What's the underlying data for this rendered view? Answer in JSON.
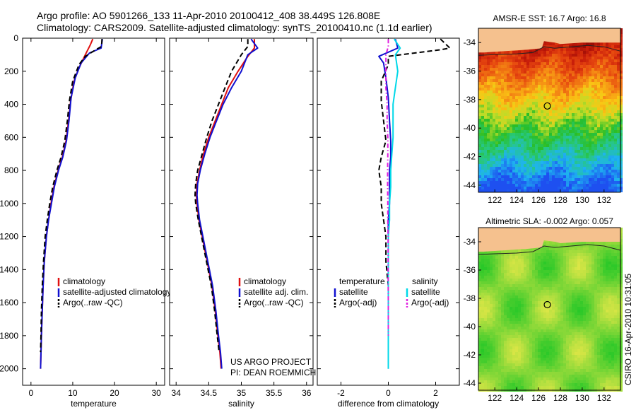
{
  "header": {
    "line1": "Argo profile: AO 5901266_133 11-Apr-2010 20100412_408 38.449S 126.808E",
    "line2": "Climatology: CARS2009. Satellite-adjusted climatology: synTS_20100410.nc (1.1d earlier)"
  },
  "side_label": "CSIRO 16-Apr-2010 10:31:05",
  "credit": {
    "line1": "US ARGO PROJECT",
    "line2": "PI: DEAN ROEMMICH"
  },
  "colors": {
    "climatology": "#e01010",
    "satellite": "#1010d0",
    "argo": "#000000",
    "sat_diff": "#00d8e8",
    "argo_adj": "#e020e0",
    "land": "#f5c18e"
  },
  "chart_data": [
    {
      "type": "line",
      "xlabel": "temperature",
      "ylabel": "",
      "xlim": [
        -2,
        32
      ],
      "ylim": [
        2100,
        0
      ],
      "xticks": [
        0,
        10,
        20,
        30
      ],
      "yticks": [
        0,
        200,
        400,
        600,
        800,
        1000,
        1200,
        1400,
        1600,
        1800,
        2000
      ],
      "legend": [
        "climatology",
        "satellite-adjusted climatology",
        "Argo(..raw -QC)"
      ],
      "series": [
        {
          "key": "climatology",
          "style": "solid",
          "points": [
            [
              14.8,
              5
            ],
            [
              14.2,
              40
            ],
            [
              13.0,
              100
            ],
            [
              11.5,
              180
            ],
            [
              10.3,
              260
            ],
            [
              9.5,
              380
            ],
            [
              9.0,
              500
            ],
            [
              8.4,
              620
            ],
            [
              7.5,
              720
            ],
            [
              6.5,
              800
            ],
            [
              5.5,
              900
            ],
            [
              4.8,
              1000
            ],
            [
              4.2,
              1100
            ],
            [
              3.7,
              1200
            ],
            [
              3.2,
              1350
            ],
            [
              2.9,
              1500
            ],
            [
              2.7,
              1650
            ],
            [
              2.5,
              1800
            ],
            [
              2.4,
              1900
            ],
            [
              2.3,
              2000
            ]
          ]
        },
        {
          "key": "satellite",
          "style": "solid",
          "points": [
            [
              17.1,
              5
            ],
            [
              16.8,
              60
            ],
            [
              14.0,
              90
            ],
            [
              12.0,
              150
            ],
            [
              10.6,
              240
            ],
            [
              9.6,
              360
            ],
            [
              9.1,
              500
            ],
            [
              8.5,
              620
            ],
            [
              7.6,
              720
            ],
            [
              6.6,
              800
            ],
            [
              5.6,
              900
            ],
            [
              4.9,
              1000
            ],
            [
              4.2,
              1100
            ],
            [
              3.7,
              1200
            ],
            [
              3.2,
              1350
            ],
            [
              2.9,
              1500
            ],
            [
              2.7,
              1650
            ],
            [
              2.5,
              1800
            ],
            [
              2.4,
              1900
            ],
            [
              2.3,
              2000
            ]
          ]
        },
        {
          "key": "argo",
          "style": "dashed",
          "points": [
            [
              17.0,
              5
            ],
            [
              16.9,
              50
            ],
            [
              15.5,
              70
            ],
            [
              13.0,
              110
            ],
            [
              11.5,
              160
            ],
            [
              10.0,
              260
            ],
            [
              9.2,
              380
            ],
            [
              8.7,
              500
            ],
            [
              8.1,
              620
            ],
            [
              7.2,
              720
            ],
            [
              6.2,
              800
            ],
            [
              5.2,
              900
            ],
            [
              4.5,
              1000
            ],
            [
              3.9,
              1100
            ],
            [
              3.4,
              1200
            ],
            [
              3.0,
              1350
            ],
            [
              2.7,
              1500
            ],
            [
              2.5,
              1650
            ],
            [
              2.4,
              1800
            ],
            [
              2.3,
              1900
            ]
          ]
        }
      ]
    },
    {
      "type": "line",
      "xlabel": "salinity",
      "ylabel": "",
      "xlim": [
        33.9,
        36.1
      ],
      "ylim": [
        2100,
        0
      ],
      "xticks": [
        34,
        34.5,
        35,
        35.5,
        36
      ],
      "yticks": [],
      "legend": [
        "climatology",
        "satellite adj. clim.",
        "Argo(..raw -QC)"
      ],
      "series": [
        {
          "key": "climatology",
          "style": "solid",
          "points": [
            [
              35.2,
              5
            ],
            [
              35.2,
              60
            ],
            [
              35.1,
              110
            ],
            [
              34.95,
              200
            ],
            [
              34.8,
              300
            ],
            [
              34.7,
              400
            ],
            [
              34.6,
              500
            ],
            [
              34.5,
              600
            ],
            [
              34.42,
              700
            ],
            [
              34.36,
              800
            ],
            [
              34.32,
              880
            ],
            [
              34.31,
              950
            ],
            [
              34.32,
              1000
            ],
            [
              34.35,
              1100
            ],
            [
              34.4,
              1200
            ],
            [
              34.45,
              1300
            ],
            [
              34.5,
              1400
            ],
            [
              34.55,
              1500
            ],
            [
              34.6,
              1650
            ],
            [
              34.64,
              1800
            ],
            [
              34.67,
              1900
            ],
            [
              34.69,
              2000
            ]
          ]
        },
        {
          "key": "satellite",
          "style": "solid",
          "points": [
            [
              35.15,
              5
            ],
            [
              35.25,
              60
            ],
            [
              35.1,
              100
            ],
            [
              35.0,
              200
            ],
            [
              34.85,
              300
            ],
            [
              34.72,
              400
            ],
            [
              34.62,
              500
            ],
            [
              34.52,
              600
            ],
            [
              34.44,
              700
            ],
            [
              34.37,
              800
            ],
            [
              34.33,
              880
            ],
            [
              34.32,
              950
            ],
            [
              34.33,
              1000
            ],
            [
              34.36,
              1100
            ],
            [
              34.41,
              1200
            ],
            [
              34.46,
              1300
            ],
            [
              34.51,
              1400
            ],
            [
              34.56,
              1500
            ],
            [
              34.61,
              1650
            ],
            [
              34.65,
              1800
            ],
            [
              34.68,
              1900
            ],
            [
              34.7,
              2000
            ]
          ]
        },
        {
          "key": "argo",
          "style": "dashed",
          "points": [
            [
              35.1,
              5
            ],
            [
              35.1,
              50
            ],
            [
              35.0,
              100
            ],
            [
              34.85,
              200
            ],
            [
              34.75,
              300
            ],
            [
              34.65,
              400
            ],
            [
              34.55,
              500
            ],
            [
              34.47,
              600
            ],
            [
              34.4,
              700
            ],
            [
              34.33,
              800
            ],
            [
              34.3,
              880
            ],
            [
              34.29,
              950
            ],
            [
              34.3,
              1000
            ],
            [
              34.34,
              1100
            ],
            [
              34.39,
              1200
            ],
            [
              34.44,
              1300
            ],
            [
              34.49,
              1400
            ],
            [
              34.54,
              1500
            ],
            [
              34.59,
              1650
            ],
            [
              34.63,
              1800
            ],
            [
              34.66,
              1900
            ]
          ]
        }
      ]
    },
    {
      "type": "line",
      "xlabel": "difference from climatology",
      "ylabel": "",
      "xlim": [
        -3,
        3
      ],
      "ylim": [
        2100,
        0
      ],
      "xticks": [
        -2,
        0,
        2
      ],
      "yticks": [],
      "legend": [
        "temperature",
        "satellite",
        "Argo(-adj)",
        "salinity",
        "satellite",
        "Argo(-adj)"
      ],
      "series": [
        {
          "key": "temp_satellite",
          "style": "solid",
          "color": "satellite",
          "points": [
            [
              0.3,
              5
            ],
            [
              0.4,
              60
            ],
            [
              -0.4,
              110
            ],
            [
              -0.2,
              150
            ],
            [
              -0.1,
              240
            ],
            [
              0.0,
              360
            ],
            [
              0.05,
              500
            ],
            [
              0.1,
              620
            ],
            [
              0.1,
              720
            ],
            [
              0.05,
              800
            ],
            [
              0.05,
              900
            ],
            [
              0.05,
              1000
            ],
            [
              0.0,
              1100
            ],
            [
              0.0,
              1200
            ],
            [
              0.0,
              1400
            ],
            [
              0.0,
              1600
            ],
            [
              0.0,
              1800
            ],
            [
              0.0,
              2000
            ]
          ]
        },
        {
          "key": "temp_argo",
          "style": "dashed",
          "color": "argo",
          "points": [
            [
              2.2,
              5
            ],
            [
              2.6,
              60
            ],
            [
              2.2,
              70
            ],
            [
              0.0,
              110
            ],
            [
              0.0,
              160
            ],
            [
              -0.3,
              260
            ],
            [
              -0.3,
              380
            ],
            [
              -0.2,
              500
            ],
            [
              -0.1,
              620
            ],
            [
              -0.3,
              720
            ],
            [
              -0.4,
              800
            ],
            [
              -0.3,
              900
            ],
            [
              -0.3,
              1000
            ],
            [
              -0.2,
              1100
            ],
            [
              -0.1,
              1200
            ],
            [
              -0.1,
              1350
            ],
            [
              0.0,
              1500
            ],
            [
              0.0,
              1650
            ],
            [
              0.0,
              1800
            ]
          ]
        },
        {
          "key": "sal_satellite",
          "style": "solid",
          "color": "sat_diff",
          "points": [
            [
              0.25,
              5
            ],
            [
              0.5,
              60
            ],
            [
              0.3,
              100
            ],
            [
              0.4,
              200
            ],
            [
              0.3,
              300
            ],
            [
              0.2,
              400
            ],
            [
              0.2,
              500
            ],
            [
              0.2,
              600
            ],
            [
              0.15,
              700
            ],
            [
              0.1,
              800
            ],
            [
              0.1,
              900
            ],
            [
              0.05,
              1000
            ],
            [
              0.05,
              1100
            ],
            [
              0.0,
              1200
            ],
            [
              0.0,
              1400
            ],
            [
              0.0,
              1600
            ],
            [
              0.0,
              1800
            ],
            [
              0.0,
              2000
            ]
          ]
        },
        {
          "key": "sal_argo",
          "style": "dashdot",
          "color": "argo_adj",
          "points": [
            [
              0.0,
              5
            ],
            [
              0.0,
              50
            ],
            [
              -0.1,
              100
            ],
            [
              -0.1,
              200
            ],
            [
              -0.1,
              300
            ],
            [
              -0.05,
              400
            ],
            [
              -0.05,
              500
            ],
            [
              -0.02,
              600
            ],
            [
              -0.02,
              700
            ],
            [
              -0.03,
              800
            ],
            [
              -0.03,
              900
            ],
            [
              -0.02,
              1000
            ],
            [
              -0.02,
              1100
            ],
            [
              -0.01,
              1200
            ],
            [
              -0.01,
              1400
            ],
            [
              0.0,
              1600
            ],
            [
              0.0,
              1800
            ]
          ]
        }
      ]
    },
    {
      "type": "heatmap",
      "title": "AMSR-E SST: 16.7  Argo: 16.8",
      "xlim": [
        120.5,
        133.5
      ],
      "ylim": [
        -44.5,
        -33
      ],
      "xticks": [
        122,
        124,
        126,
        128,
        130,
        132
      ],
      "yticks": [
        -34,
        -36,
        -38,
        -40,
        -42,
        -44
      ],
      "marker": {
        "lon": 126.808,
        "lat": -38.449
      },
      "field": "sst"
    },
    {
      "type": "heatmap",
      "title": "Altimetric SLA: -0.002  Argo: 0.057",
      "xlim": [
        120.5,
        133.5
      ],
      "ylim": [
        -44.5,
        -33
      ],
      "xticks": [
        122,
        124,
        126,
        128,
        130,
        132
      ],
      "yticks": [
        -34,
        -36,
        -38,
        -40,
        -42,
        -44
      ],
      "marker": {
        "lon": 126.808,
        "lat": -38.449
      },
      "field": "sla"
    }
  ]
}
